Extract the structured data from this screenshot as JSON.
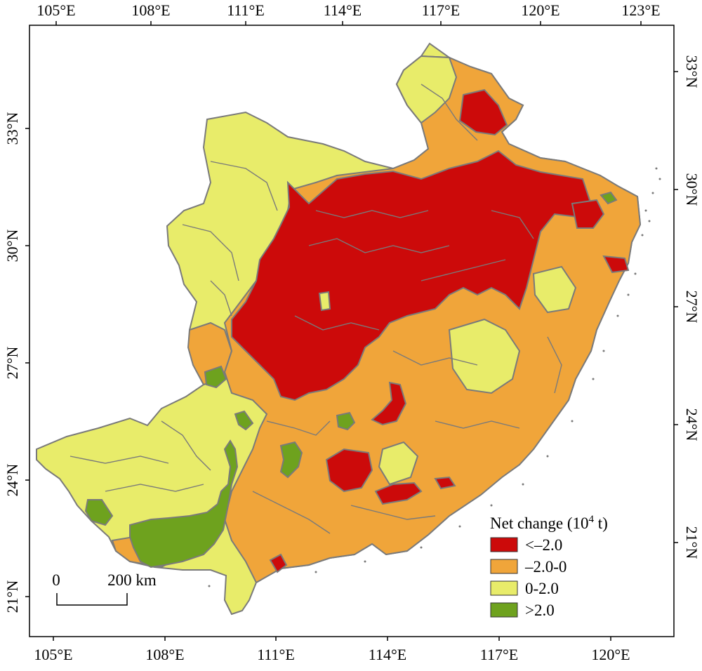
{
  "map": {
    "top_longitude_labels": [
      "105°E",
      "108°E",
      "111°E",
      "114°E",
      "117°E",
      "120°E",
      "123°E"
    ],
    "bottom_longitude_labels": [
      "105°E",
      "108°E",
      "111°E",
      "114°E",
      "117°E",
      "120°E"
    ],
    "left_latitude_labels": [
      "33°N",
      "30°N",
      "27°N",
      "24°N",
      "21°N"
    ],
    "right_latitude_labels": [
      "33°N",
      "30°N",
      "27°N",
      "24°N",
      "21°N"
    ]
  },
  "legend": {
    "title": "Net change (10",
    "title_sup": "4",
    "title_end": " t)",
    "items": [
      {
        "label": "<–2.0",
        "color": "#cc0a0a"
      },
      {
        "label": "–2.0-0",
        "color": "#f0a53a"
      },
      {
        "label": "0-2.0",
        "color": "#e8ec6a"
      },
      {
        "label": ">2.0",
        "color": "#6ea21e"
      }
    ]
  },
  "scale_bar": {
    "zero_label": "0",
    "distance_label": "200 km"
  },
  "colors": {
    "outline": "#7a7a7a",
    "frame": "#000000"
  }
}
